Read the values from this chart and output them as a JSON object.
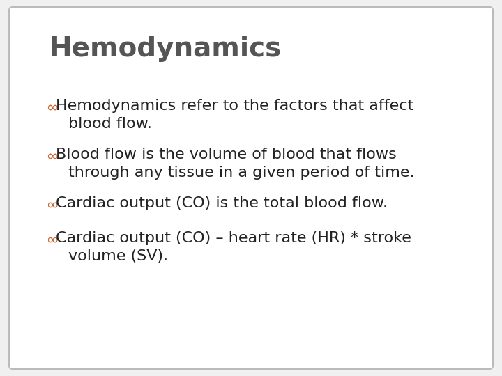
{
  "title": "Hemodynamics",
  "title_color": "#555555",
  "title_fontsize": 28,
  "bullet_symbol": "∞",
  "bullet_color": "#cc6633",
  "bullet_fontsize": 16,
  "text_color": "#222222",
  "text_fontsize": 16,
  "background_color": "#ffffff",
  "slide_bg": "#f0f0f0",
  "border_color": "#bbbbbb",
  "bullets": [
    {
      "line1": "Hemodynamics refer to the factors that affect",
      "line2": "blood flow."
    },
    {
      "line1": "Blood flow is the volume of blood that flows",
      "line2": "through any tissue in a given period of time."
    },
    {
      "line1": "Cardiac output (CO) is the total blood flow.",
      "line2": null
    },
    {
      "line1": "Cardiac output (CO) – heart rate (HR) * stroke",
      "line2": "volume (SV)."
    }
  ]
}
